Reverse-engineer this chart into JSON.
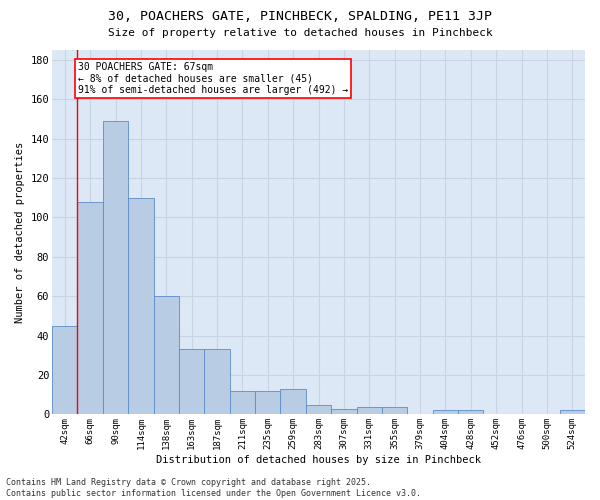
{
  "title1": "30, POACHERS GATE, PINCHBECK, SPALDING, PE11 3JP",
  "title2": "Size of property relative to detached houses in Pinchbeck",
  "xlabel": "Distribution of detached houses by size in Pinchbeck",
  "ylabel": "Number of detached properties",
  "categories": [
    "42sqm",
    "66sqm",
    "90sqm",
    "114sqm",
    "138sqm",
    "163sqm",
    "187sqm",
    "211sqm",
    "235sqm",
    "259sqm",
    "283sqm",
    "307sqm",
    "331sqm",
    "355sqm",
    "379sqm",
    "404sqm",
    "428sqm",
    "452sqm",
    "476sqm",
    "500sqm",
    "524sqm"
  ],
  "values": [
    45,
    108,
    149,
    110,
    60,
    33,
    33,
    12,
    12,
    13,
    5,
    3,
    4,
    4,
    0,
    2,
    2,
    0,
    0,
    0,
    2
  ],
  "bar_color": "#b8cce4",
  "bar_edge_color": "#5b8cc8",
  "grid_color": "#c8d4e4",
  "background_color": "#dce8f5",
  "annotation_line1": "30 POACHERS GATE: 67sqm",
  "annotation_line2": "← 8% of detached houses are smaller (45)",
  "annotation_line3": "91% of semi-detached houses are larger (492) →",
  "annotation_text_fontsize": 7,
  "vline_x_index": 0.5,
  "ylim": [
    0,
    185
  ],
  "yticks": [
    0,
    20,
    40,
    60,
    80,
    100,
    120,
    140,
    160,
    180
  ],
  "footer1": "Contains HM Land Registry data © Crown copyright and database right 2025.",
  "footer2": "Contains public sector information licensed under the Open Government Licence v3.0."
}
